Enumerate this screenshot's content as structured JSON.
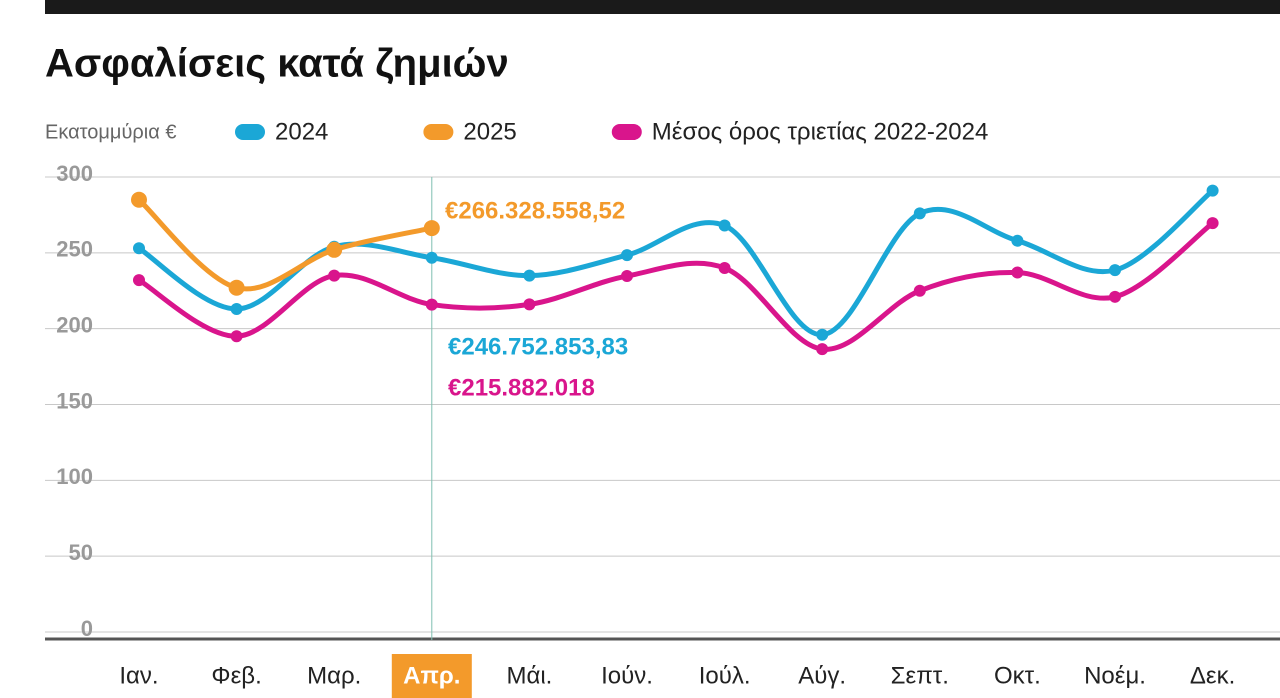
{
  "chart_data": {
    "type": "line",
    "title": "Ασφαλίσεις κατά ζημιών",
    "y_label": "Εκατομμύρια €",
    "categories": [
      "Ιαν.",
      "Φεβ.",
      "Μαρ.",
      "Απρ.",
      "Μάι.",
      "Ιούν.",
      "Ιούλ.",
      "Αύγ.",
      "Σεπτ.",
      "Οκτ.",
      "Νοέμ.",
      "Δεκ."
    ],
    "highlight_category": 3,
    "series": [
      {
        "name": "2024",
        "color": "#1ba7d6",
        "values": [
          253,
          213,
          254,
          246.75285383,
          235,
          248.5,
          268,
          196,
          276,
          258,
          238.6,
          291
        ],
        "value_labels": [
          null,
          null,
          null,
          "€246.752.853,83",
          null,
          null,
          null,
          null,
          null,
          null,
          null,
          null
        ]
      },
      {
        "name": "2025",
        "color": "#f39a2b",
        "values": [
          285,
          227,
          252,
          266.32855852,
          null,
          null,
          null,
          null,
          null,
          null,
          null,
          null
        ],
        "value_labels": [
          null,
          null,
          null,
          "€266.328.558,52",
          null,
          null,
          null,
          null,
          null,
          null,
          null,
          null
        ]
      },
      {
        "name": "Μέσος όρος τριετίας 2022-2024",
        "color": "#d9158c",
        "values": [
          232,
          195,
          235,
          215.882018,
          216,
          234.7,
          240,
          186.5,
          225,
          237,
          221,
          269.6
        ],
        "value_labels": [
          null,
          null,
          null,
          "€215.882.018",
          null,
          null,
          null,
          null,
          null,
          null,
          null,
          null
        ]
      }
    ],
    "ylim": [
      0,
      300
    ],
    "yticks": [
      0,
      50,
      100,
      150,
      200,
      250,
      300
    ],
    "grid": true
  }
}
